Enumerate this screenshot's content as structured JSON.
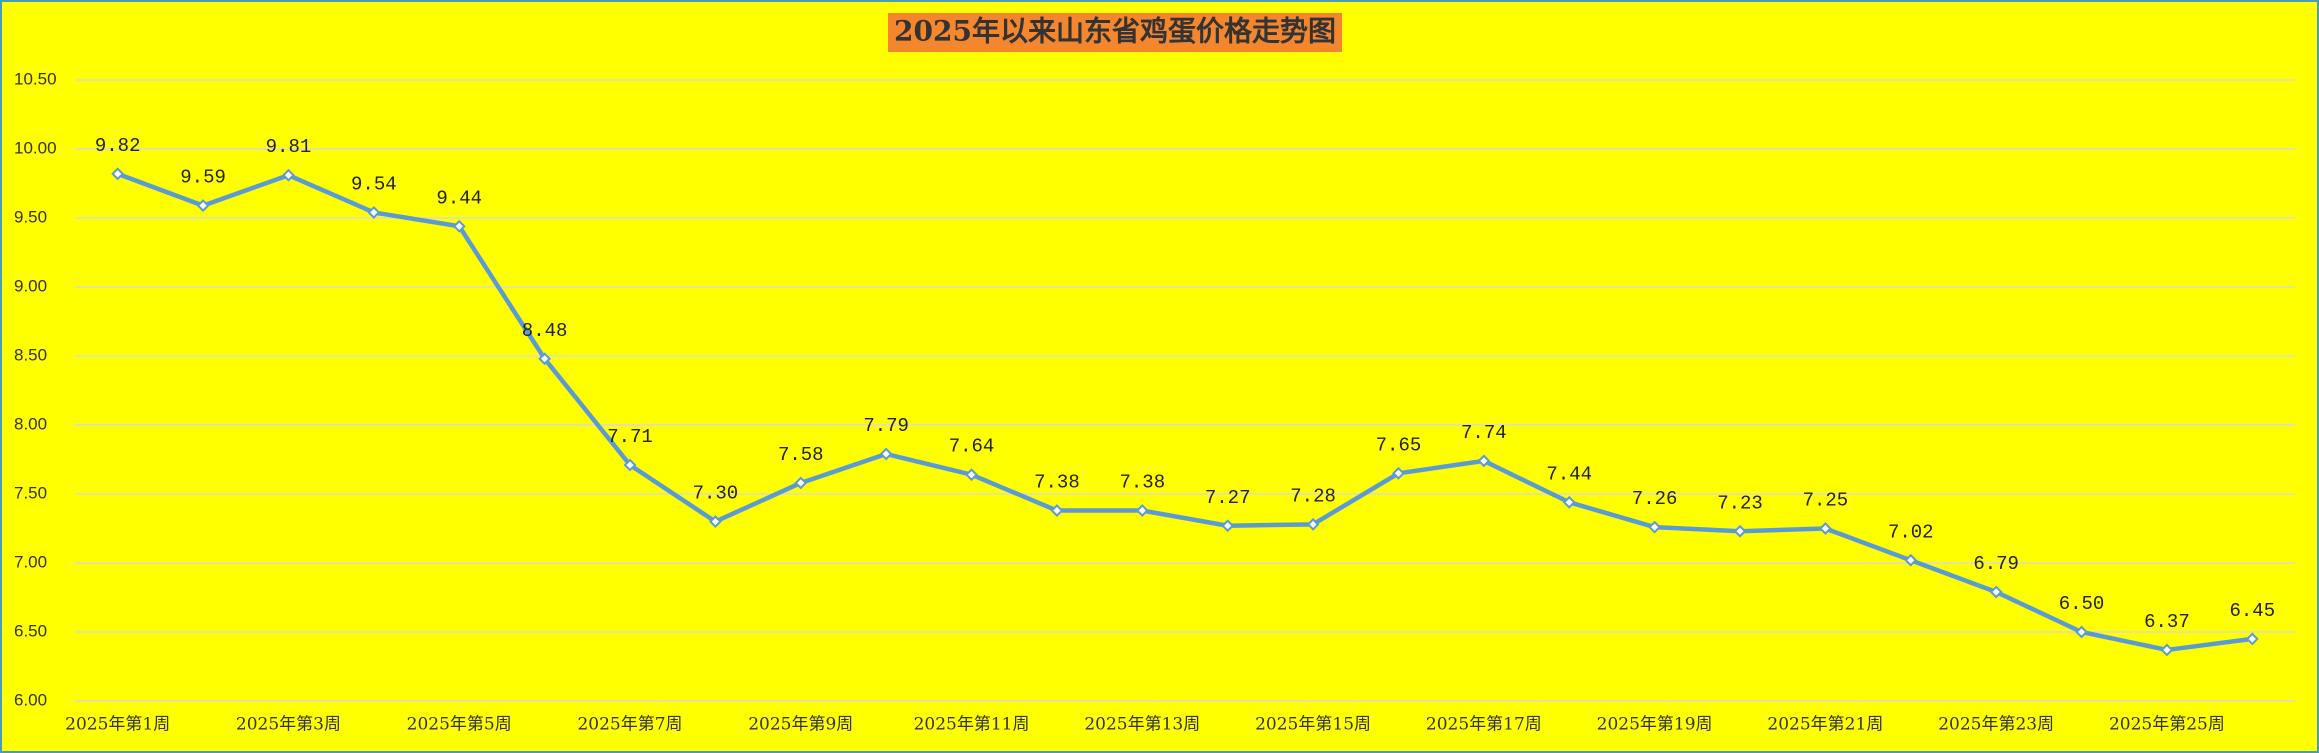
{
  "chart_data": {
    "type": "line",
    "title": "2025年以来山东省鸡蛋价格走势图",
    "categories": [
      "2025年第1周",
      null,
      "2025年第3周",
      null,
      "2025年第5周",
      null,
      "2025年第7周",
      null,
      "2025年第9周",
      null,
      "2025年第11周",
      null,
      "2025年第13周",
      null,
      "2025年第15周",
      null,
      "2025年第17周",
      null,
      "2025年第19周",
      null,
      "2025年第21周",
      null,
      "2025年第23周",
      null,
      "2025年第25周",
      null
    ],
    "values": [
      9.82,
      9.59,
      9.81,
      9.54,
      9.44,
      8.48,
      7.71,
      7.3,
      7.58,
      7.79,
      7.64,
      7.38,
      7.38,
      7.27,
      7.28,
      7.65,
      7.74,
      7.44,
      7.26,
      7.23,
      7.25,
      7.02,
      6.79,
      6.5,
      6.37,
      6.45
    ],
    "value_labels": [
      "9.82",
      "9.59",
      "9.81",
      "9.54",
      "9.44",
      "8.48",
      "7.71",
      "7.30",
      "7.58",
      "7.79",
      "7.64",
      "7.38",
      "7.38",
      "7.27",
      "7.28",
      "7.65",
      "7.74",
      "7.44",
      "7.26",
      "7.23",
      "7.25",
      "7.02",
      "6.79",
      "6.50",
      "6.37",
      "6.45"
    ],
    "color": "#5b9bd5",
    "ylim": [
      6,
      10.5
    ],
    "yticks": [
      {
        "value": 6,
        "label": "6.00"
      },
      {
        "value": 6.5,
        "label": "6.50"
      },
      {
        "value": 7,
        "label": "7.00"
      },
      {
        "value": 7.5,
        "label": "7.50"
      },
      {
        "value": 8,
        "label": "8.00"
      },
      {
        "value": 8.5,
        "label": "8.50"
      },
      {
        "value": 9,
        "label": "9.00"
      },
      {
        "value": 9.5,
        "label": "9.50"
      },
      {
        "value": 10,
        "label": "10.00"
      },
      {
        "value": 10.5,
        "label": "10.50"
      }
    ],
    "grid": true
  }
}
